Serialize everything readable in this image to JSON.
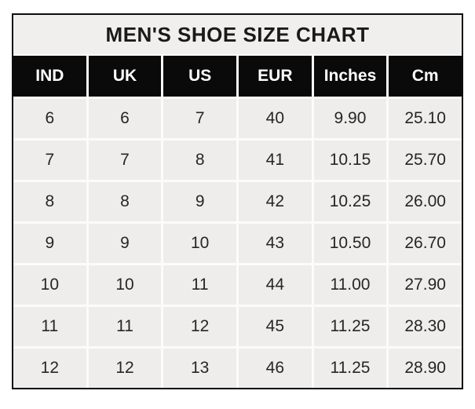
{
  "title": "MEN'S SHOE SIZE CHART",
  "table": {
    "headers": [
      "IND",
      "UK",
      "US",
      "EUR",
      "Inches",
      "Cm"
    ],
    "rows": [
      [
        "6",
        "6",
        "7",
        "40",
        "9.90",
        "25.10"
      ],
      [
        "7",
        "7",
        "8",
        "41",
        "10.15",
        "25.70"
      ],
      [
        "8",
        "8",
        "9",
        "42",
        "10.25",
        "26.00"
      ],
      [
        "9",
        "9",
        "10",
        "43",
        "10.50",
        "26.70"
      ],
      [
        "10",
        "10",
        "11",
        "44",
        "11.00",
        "27.90"
      ],
      [
        "11",
        "11",
        "12",
        "45",
        "11.25",
        "28.30"
      ],
      [
        "12",
        "12",
        "13",
        "46",
        "11.25",
        "28.90"
      ]
    ]
  },
  "colors": {
    "outer_border": "#0c0c0c",
    "title_bg": "#f0efee",
    "title_text": "#1a1a1a",
    "header_bg": "#0a0a0a",
    "header_text": "#ffffff",
    "cell_bg": "#eeedec",
    "cell_text": "#262626",
    "gridline": "#fbfbfb",
    "page_bg": "#ffffff"
  },
  "chart_data": {
    "type": "table",
    "title": "MEN'S SHOE SIZE CHART",
    "columns": [
      "IND",
      "UK",
      "US",
      "EUR",
      "Inches",
      "Cm"
    ],
    "rows": [
      [
        6,
        6,
        7,
        40,
        9.9,
        25.1
      ],
      [
        7,
        7,
        8,
        41,
        10.15,
        25.7
      ],
      [
        8,
        8,
        9,
        42,
        10.25,
        26.0
      ],
      [
        9,
        9,
        10,
        43,
        10.5,
        26.7
      ],
      [
        10,
        10,
        11,
        44,
        11.0,
        27.9
      ],
      [
        11,
        11,
        12,
        45,
        11.25,
        28.3
      ],
      [
        12,
        12,
        13,
        46,
        11.25,
        28.9
      ]
    ]
  }
}
